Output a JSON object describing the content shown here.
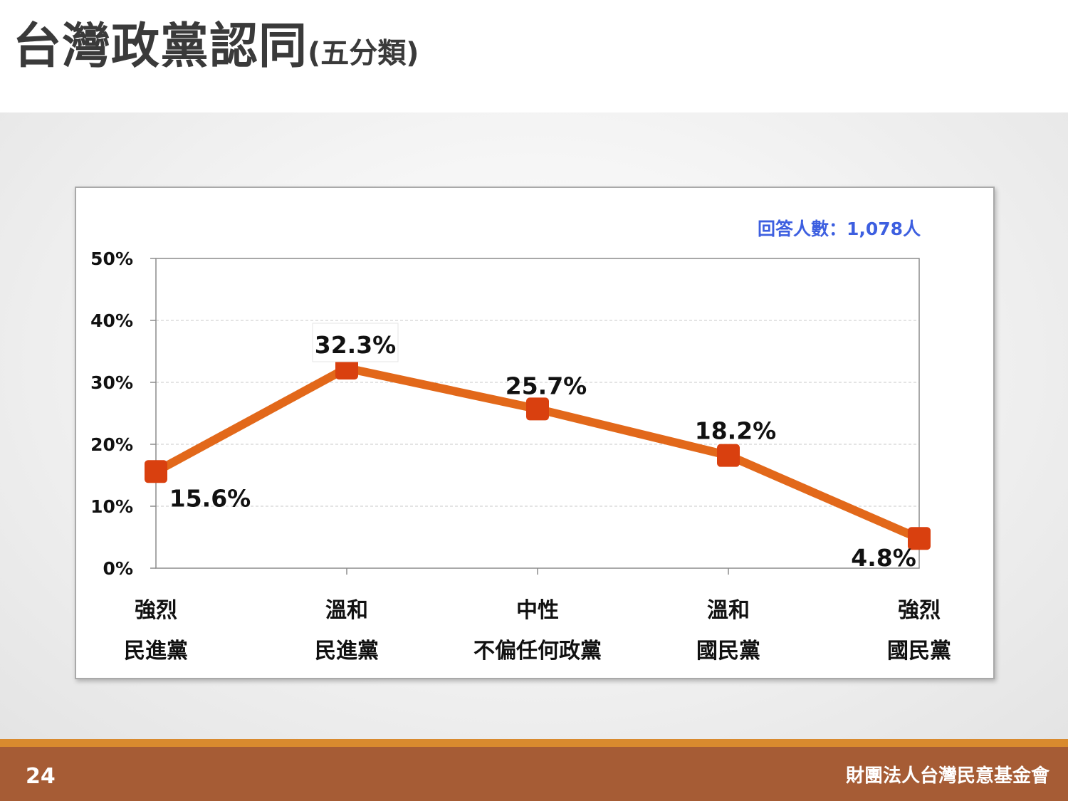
{
  "slide": {
    "title": "台灣政黨認同",
    "subtitle": "(五分類)",
    "respondents_label": "回答人數：1,078人",
    "page_number": "24",
    "organization": "財團法人台灣民意基金會"
  },
  "colors": {
    "line": "#e2681a",
    "marker": "#d9400f",
    "respondents_text": "#3d5fe0",
    "footer": "#a65c35",
    "footer_stripe": "#d98a2e"
  },
  "chart_data": {
    "type": "line",
    "categories": [
      [
        "強烈",
        "民進黨"
      ],
      [
        "溫和",
        "民進黨"
      ],
      [
        "中性",
        "不偏任何政黨"
      ],
      [
        "溫和",
        "國民黨"
      ],
      [
        "強烈",
        "國民黨"
      ]
    ],
    "series": [
      {
        "values": [
          15.6,
          32.3,
          25.7,
          18.2,
          4.8
        ]
      }
    ],
    "data_labels": [
      "15.6%",
      "32.3%",
      "25.7%",
      "18.2%",
      "4.8%"
    ],
    "yticks": [
      "0%",
      "10%",
      "20%",
      "30%",
      "40%",
      "50%"
    ],
    "ylim": [
      0,
      50
    ],
    "grid": true,
    "legend": "none"
  }
}
